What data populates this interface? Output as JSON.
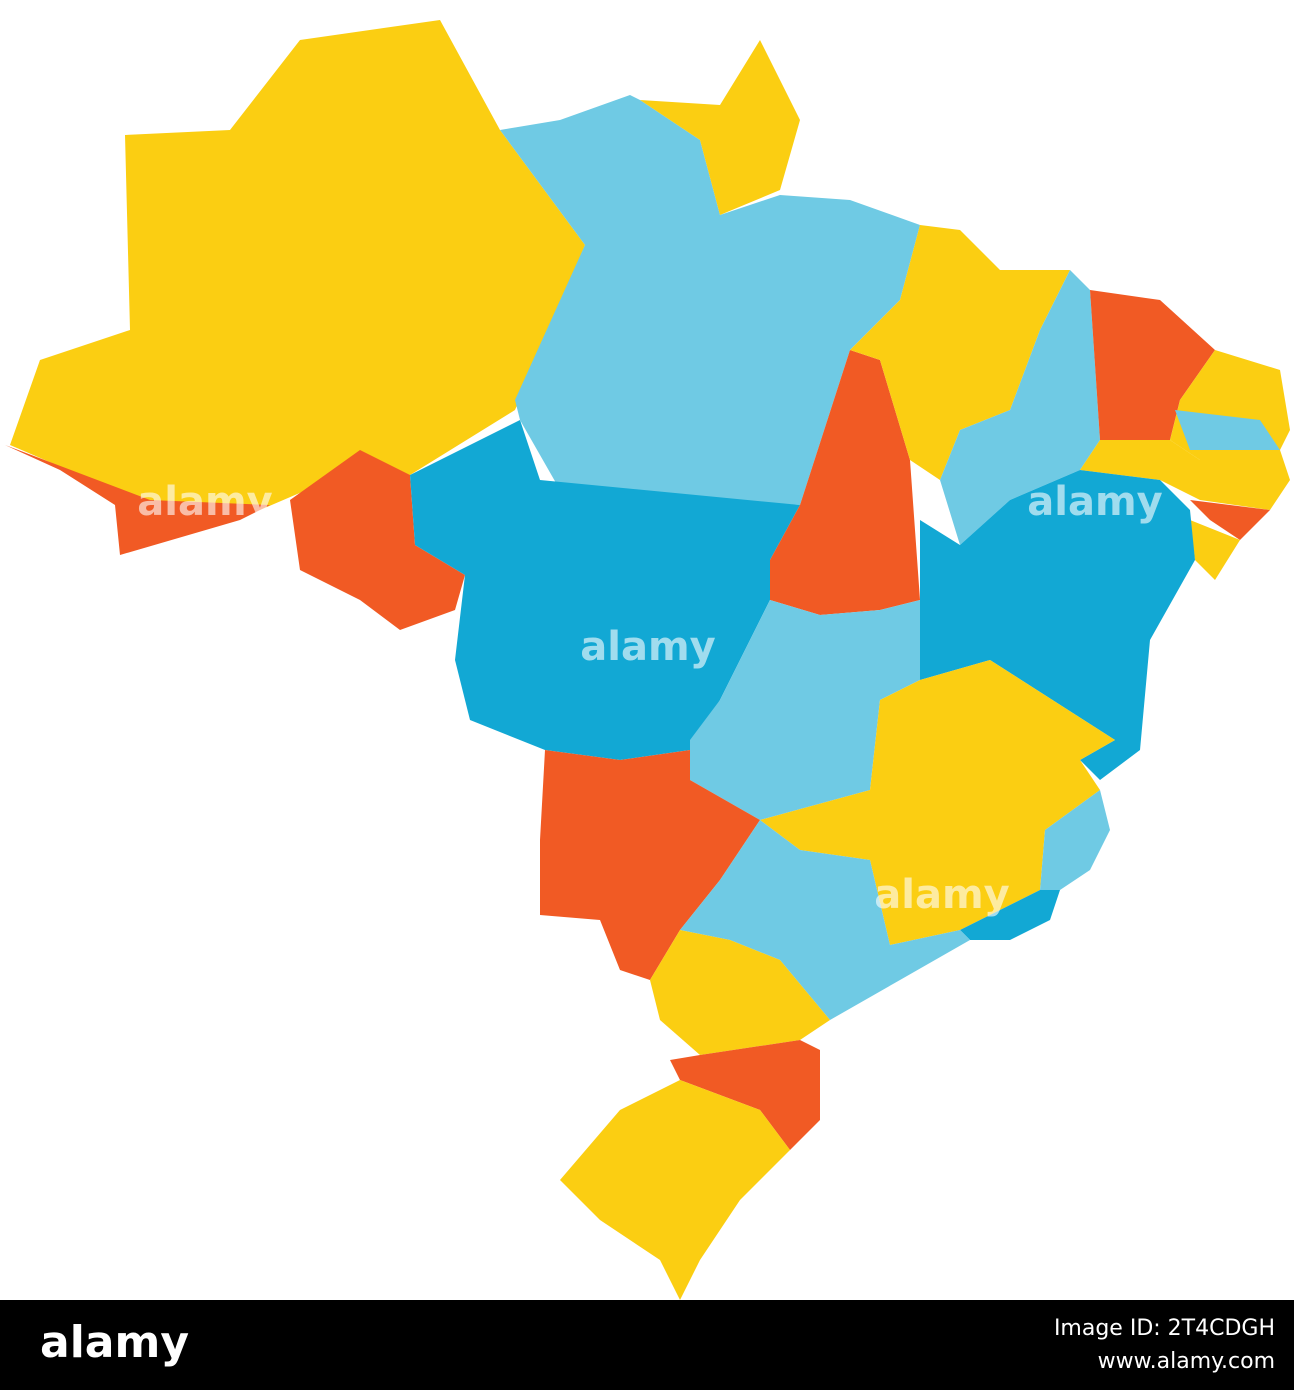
{
  "watermarks": [
    "alamy",
    "alamy",
    "alamy",
    "alamy"
  ],
  "footer": {
    "logo": "alamy",
    "image_id": "Image ID: 2T4CDGH",
    "url": "www.alamy.com"
  }
}
